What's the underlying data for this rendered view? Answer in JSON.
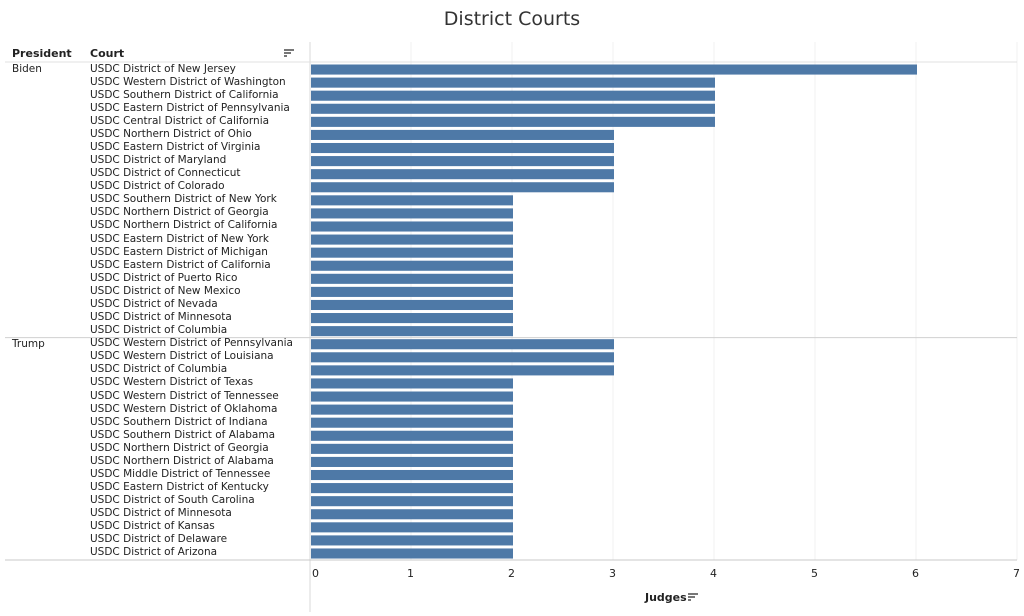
{
  "chart_data": {
    "type": "bar",
    "orientation": "horizontal",
    "title": "District Courts",
    "row_headers": [
      "President",
      "Court"
    ],
    "xlabel": "Judges",
    "xlim": [
      0,
      7
    ],
    "xticks": [
      0,
      1,
      2,
      3,
      4,
      5,
      6,
      7
    ],
    "bar_color": "#4e79a7",
    "grid": true,
    "groups": [
      {
        "name": "Biden",
        "courts": [
          {
            "court": "USDC District of New Jersey",
            "value": 6
          },
          {
            "court": "USDC Western District of Washington",
            "value": 4
          },
          {
            "court": "USDC Southern District of California",
            "value": 4
          },
          {
            "court": "USDC Eastern District of Pennsylvania",
            "value": 4
          },
          {
            "court": "USDC Central District of California",
            "value": 4
          },
          {
            "court": "USDC Northern District of Ohio",
            "value": 3
          },
          {
            "court": "USDC Eastern District of Virginia",
            "value": 3
          },
          {
            "court": "USDC District of Maryland",
            "value": 3
          },
          {
            "court": "USDC District of Connecticut",
            "value": 3
          },
          {
            "court": "USDC District of Colorado",
            "value": 3
          },
          {
            "court": "USDC Southern District of New York",
            "value": 2
          },
          {
            "court": "USDC Northern District of Georgia",
            "value": 2
          },
          {
            "court": "USDC Northern District of California",
            "value": 2
          },
          {
            "court": "USDC Eastern District of New York",
            "value": 2
          },
          {
            "court": "USDC Eastern District of Michigan",
            "value": 2
          },
          {
            "court": "USDC Eastern District of California",
            "value": 2
          },
          {
            "court": "USDC District of Puerto Rico",
            "value": 2
          },
          {
            "court": "USDC District of New Mexico",
            "value": 2
          },
          {
            "court": "USDC District of Nevada",
            "value": 2
          },
          {
            "court": "USDC District of Minnesota",
            "value": 2
          },
          {
            "court": "USDC District of Columbia",
            "value": 2
          }
        ]
      },
      {
        "name": "Trump",
        "courts": [
          {
            "court": "USDC Western District of Pennsylvania",
            "value": 3
          },
          {
            "court": "USDC Western District of Louisiana",
            "value": 3
          },
          {
            "court": "USDC District of Columbia",
            "value": 3
          },
          {
            "court": "USDC Western District of Texas",
            "value": 2
          },
          {
            "court": "USDC Western District of Tennessee",
            "value": 2
          },
          {
            "court": "USDC Western District of Oklahoma",
            "value": 2
          },
          {
            "court": "USDC Southern District of Indiana",
            "value": 2
          },
          {
            "court": "USDC Southern District of Alabama",
            "value": 2
          },
          {
            "court": "USDC Northern District of Georgia",
            "value": 2
          },
          {
            "court": "USDC Northern District of Alabama",
            "value": 2
          },
          {
            "court": "USDC Middle District of Tennessee",
            "value": 2
          },
          {
            "court": "USDC Eastern District of Kentucky",
            "value": 2
          },
          {
            "court": "USDC District of South Carolina",
            "value": 2
          },
          {
            "court": "USDC District of Minnesota",
            "value": 2
          },
          {
            "court": "USDC District of Kansas",
            "value": 2
          },
          {
            "court": "USDC District of Delaware",
            "value": 2
          },
          {
            "court": "USDC District of Arizona",
            "value": 2
          }
        ]
      }
    ]
  }
}
